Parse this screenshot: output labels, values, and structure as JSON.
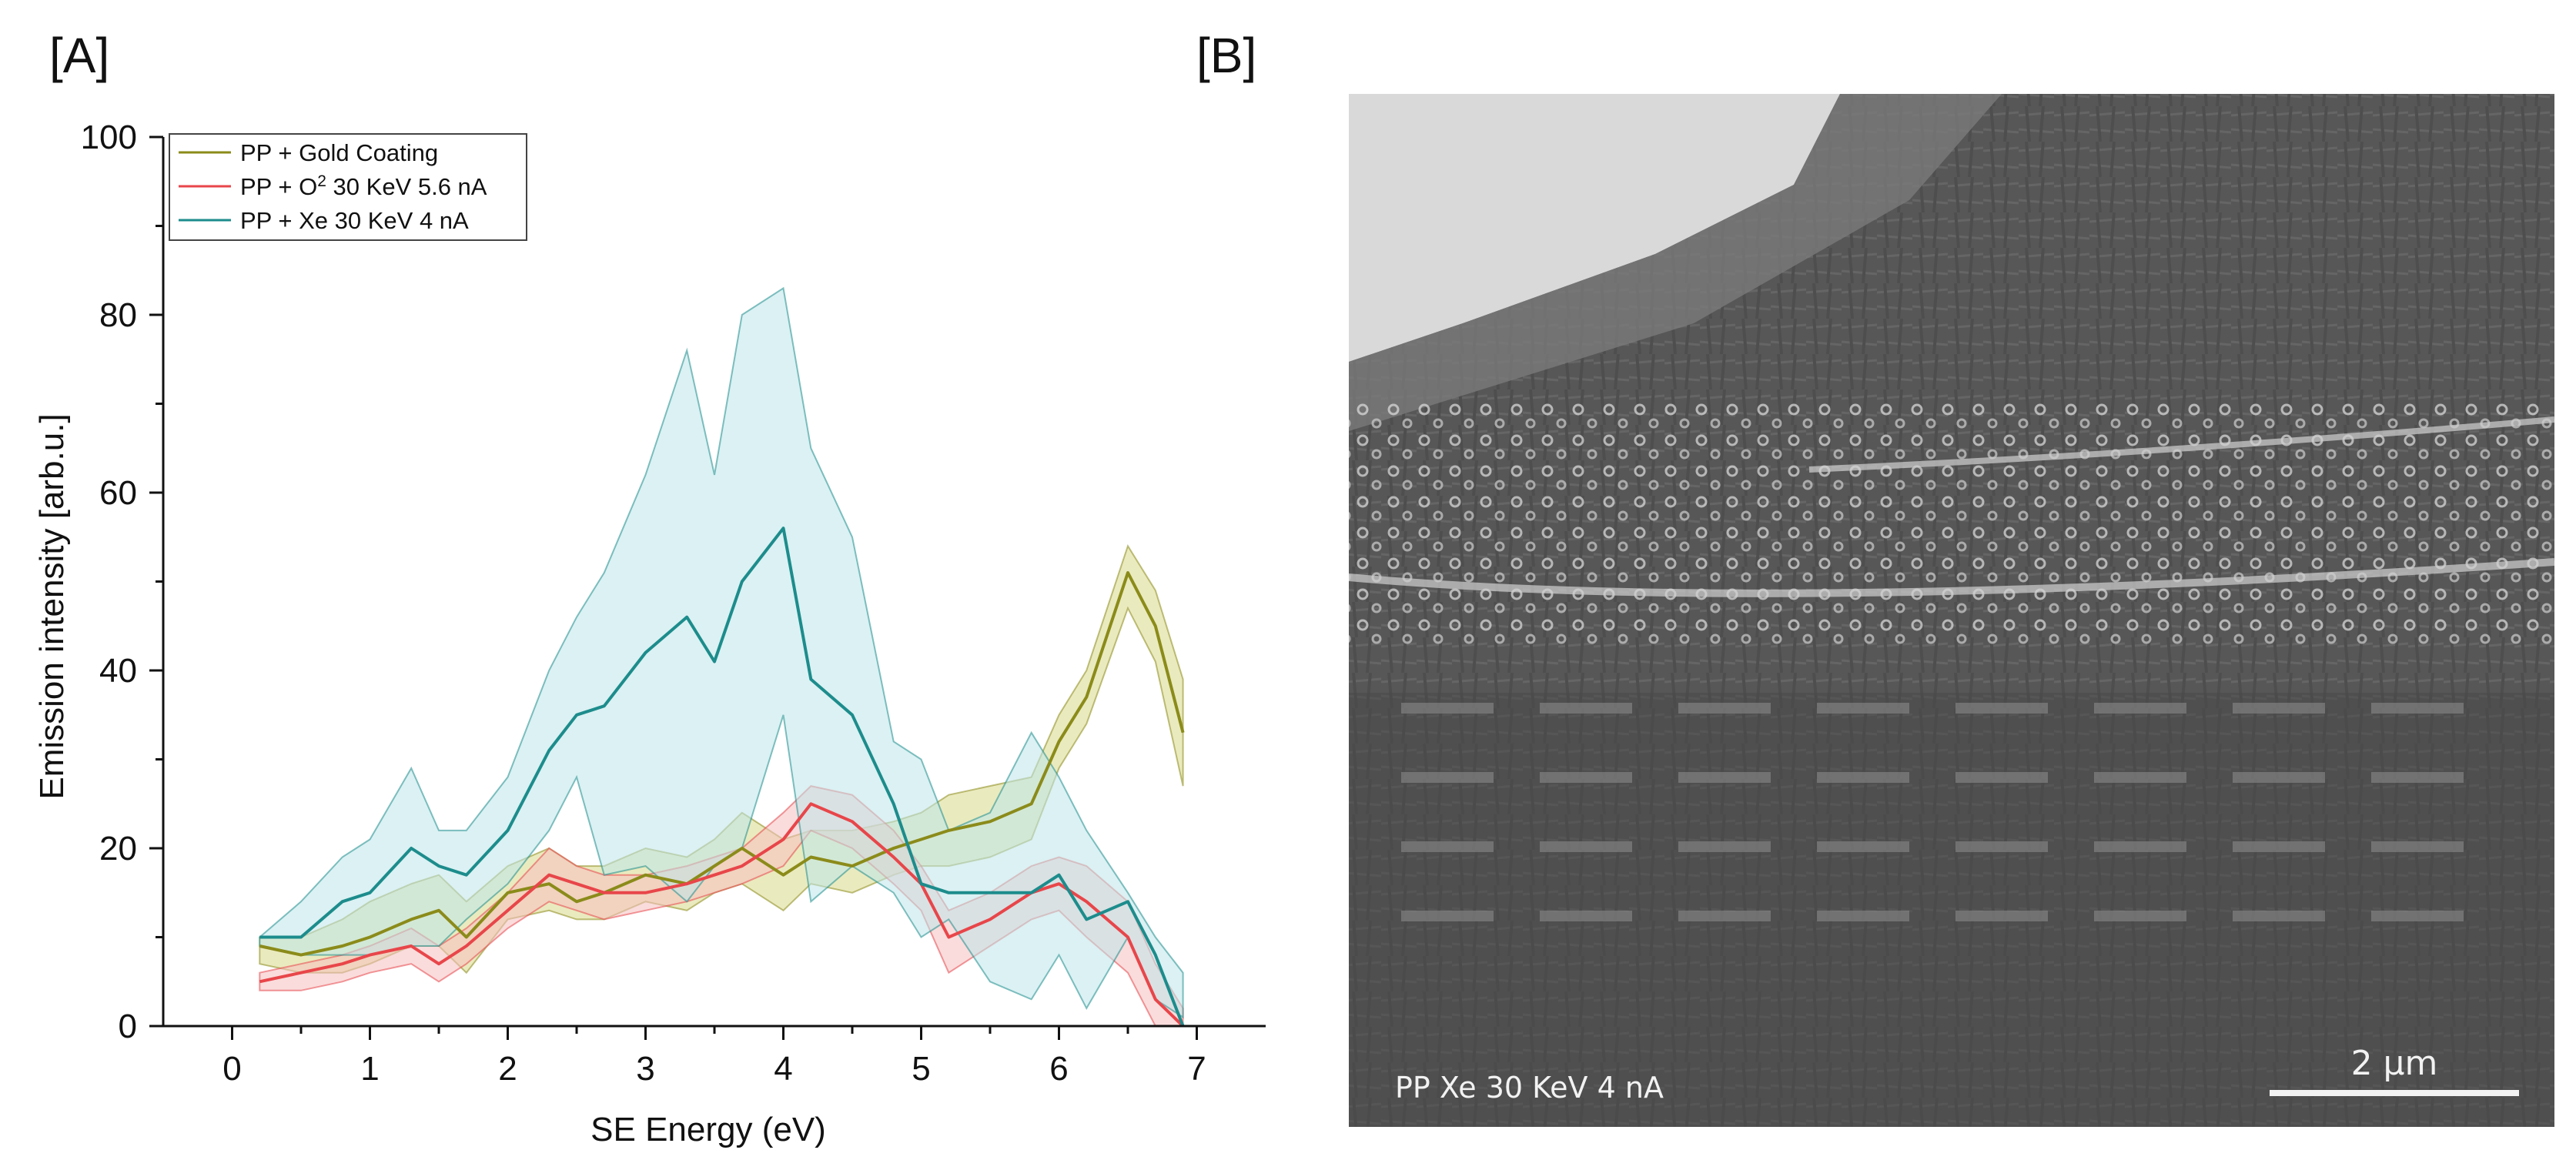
{
  "panels": {
    "a_label": "[A]",
    "b_label": "[B]"
  },
  "chart_data": {
    "type": "line",
    "title": "",
    "xlabel": "SE Energy (eV)",
    "ylabel": "Emission intensity [arb.u.]",
    "xlim": [
      -0.5,
      7.5
    ],
    "ylim": [
      0,
      100
    ],
    "xticks": [
      0,
      1,
      2,
      3,
      4,
      5,
      6,
      7
    ],
    "yticks": [
      0,
      20,
      40,
      60,
      80,
      100
    ],
    "legend_position": "top-left",
    "band": "shaded band = variation range around each mean curve",
    "series": [
      {
        "name": "PP + Gold Coating",
        "legend_parts": [
          "PP + Gold Coating"
        ],
        "color": "#8b8b1a",
        "fill": "#d8d98a",
        "x": [
          0.2,
          0.5,
          0.8,
          1.0,
          1.3,
          1.5,
          1.7,
          2.0,
          2.3,
          2.5,
          2.7,
          3.0,
          3.3,
          3.5,
          3.7,
          4.0,
          4.2,
          4.5,
          4.8,
          5.0,
          5.2,
          5.5,
          5.8,
          6.0,
          6.2,
          6.5,
          6.7,
          6.9
        ],
        "y": [
          9,
          8,
          9,
          10,
          12,
          13,
          10,
          15,
          16,
          14,
          15,
          17,
          16,
          18,
          20,
          17,
          19,
          18,
          20,
          21,
          22,
          23,
          25,
          32,
          37,
          51,
          45,
          33
        ],
        "upper": [
          10,
          10,
          12,
          14,
          16,
          17,
          14,
          18,
          20,
          18,
          18,
          20,
          19,
          21,
          24,
          21,
          22,
          22,
          23,
          24,
          26,
          27,
          28,
          35,
          40,
          54,
          49,
          39
        ],
        "lower": [
          7,
          6,
          6,
          7,
          9,
          9,
          6,
          12,
          13,
          12,
          12,
          14,
          13,
          15,
          16,
          13,
          16,
          15,
          17,
          18,
          18,
          19,
          21,
          29,
          34,
          47,
          41,
          27
        ]
      },
      {
        "name": "PP + O2 30 KeV 5.6 nA",
        "legend_parts": [
          "PP + O",
          "2",
          " 30 KeV 5.6 nA"
        ],
        "color": "#e8464a",
        "fill": "#f6c0c0",
        "x": [
          0.2,
          0.5,
          0.8,
          1.0,
          1.3,
          1.5,
          1.7,
          2.0,
          2.3,
          2.5,
          2.7,
          3.0,
          3.3,
          3.5,
          3.7,
          4.0,
          4.2,
          4.5,
          4.8,
          5.0,
          5.2,
          5.5,
          5.8,
          6.0,
          6.2,
          6.5,
          6.7,
          6.9
        ],
        "y": [
          5,
          6,
          7,
          8,
          9,
          7,
          9,
          13,
          17,
          16,
          15,
          15,
          16,
          17,
          18,
          21,
          25,
          23,
          19,
          16,
          10,
          12,
          15,
          16,
          14,
          10,
          3,
          0
        ],
        "upper": [
          6,
          7,
          8,
          9,
          11,
          9,
          11,
          15,
          20,
          18,
          17,
          17,
          18,
          19,
          20,
          24,
          27,
          26,
          22,
          18,
          13,
          15,
          18,
          19,
          18,
          14,
          7,
          2
        ],
        "lower": [
          4,
          4,
          5,
          6,
          7,
          5,
          7,
          11,
          14,
          13,
          12,
          13,
          14,
          15,
          16,
          18,
          22,
          20,
          16,
          13,
          6,
          9,
          12,
          13,
          10,
          6,
          0,
          0
        ]
      },
      {
        "name": "PP + Xe 30 KeV 4 nA",
        "legend_parts": [
          "PP + Xe 30 KeV 4 nA"
        ],
        "color": "#1d8c8c",
        "fill": "#bde6ea",
        "x": [
          0.2,
          0.5,
          0.8,
          1.0,
          1.3,
          1.5,
          1.7,
          2.0,
          2.3,
          2.5,
          2.7,
          3.0,
          3.3,
          3.5,
          3.7,
          4.0,
          4.2,
          4.5,
          4.8,
          5.0,
          5.2,
          5.5,
          5.8,
          6.0,
          6.2,
          6.5,
          6.7,
          6.9
        ],
        "y": [
          10,
          10,
          14,
          15,
          20,
          18,
          17,
          22,
          31,
          35,
          36,
          42,
          46,
          41,
          50,
          56,
          39,
          35,
          25,
          16,
          15,
          15,
          15,
          17,
          12,
          14,
          8,
          0
        ],
        "upper": [
          10,
          14,
          19,
          21,
          29,
          22,
          22,
          28,
          40,
          46,
          51,
          62,
          76,
          62,
          80,
          83,
          65,
          55,
          32,
          30,
          22,
          24,
          33,
          28,
          22,
          15,
          10,
          6
        ],
        "lower": [
          9,
          8,
          8,
          8,
          9,
          9,
          12,
          16,
          22,
          28,
          17,
          18,
          14,
          18,
          20,
          35,
          14,
          18,
          15,
          10,
          12,
          5,
          3,
          8,
          2,
          10,
          3,
          1
        ]
      }
    ]
  },
  "sem_image": {
    "caption": "PP Xe 30 KeV 4 nA",
    "scale_bar_label": "2 µm"
  }
}
